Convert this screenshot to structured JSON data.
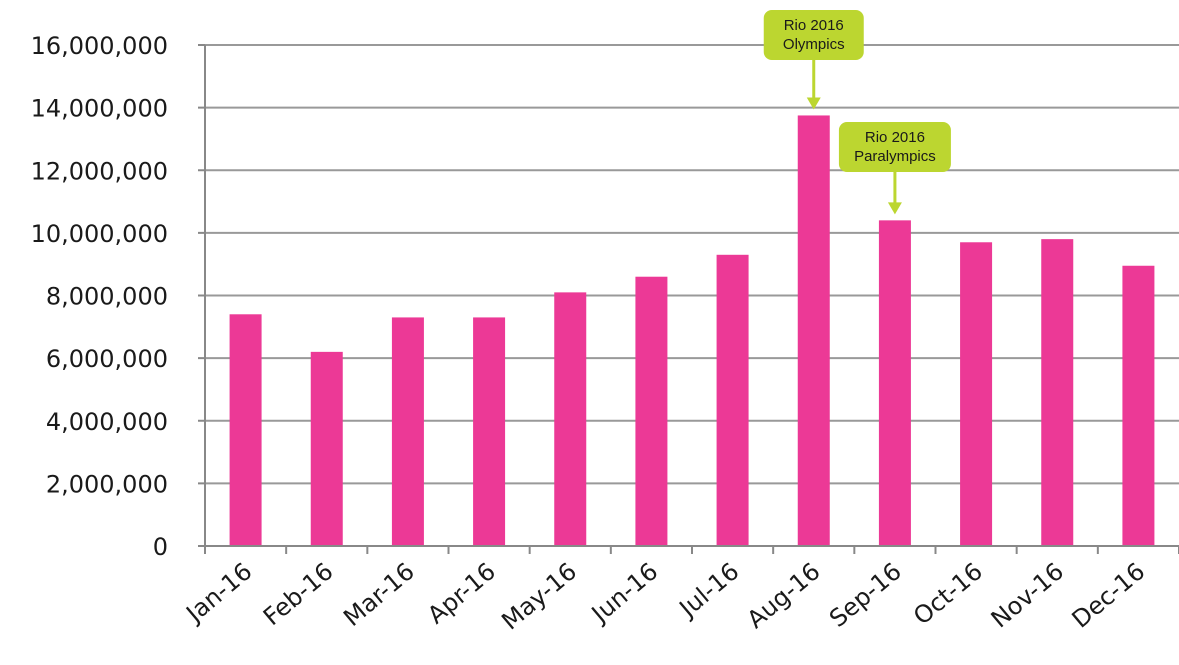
{
  "chart_data": {
    "type": "bar",
    "title": "",
    "xlabel": "",
    "ylabel": "",
    "categories": [
      "Jan-16",
      "Feb-16",
      "Mar-16",
      "Apr-16",
      "May-16",
      "Jun-16",
      "Jul-16",
      "Aug-16",
      "Sep-16",
      "Oct-16",
      "Nov-16",
      "Dec-16"
    ],
    "values": [
      7400000,
      6200000,
      7300000,
      7300000,
      8100000,
      8600000,
      9300000,
      13750000,
      10400000,
      9700000,
      9800000,
      8950000
    ],
    "ylim": [
      0,
      16000000
    ],
    "yticks": [
      0,
      2000000,
      4000000,
      6000000,
      8000000,
      10000000,
      12000000,
      14000000,
      16000000
    ],
    "ytick_labels": [
      "0",
      "2,000,000",
      "4,000,000",
      "6,000,000",
      "8,000,000",
      "10,000,000",
      "12,000,000",
      "14,000,000",
      "16,000,000"
    ],
    "grid": true,
    "bar_color": "#ec3996",
    "grid_color": "#999999",
    "annotations": [
      {
        "category": "Aug-16",
        "lines": [
          "Rio 2016",
          "Olympics"
        ]
      },
      {
        "category": "Sep-16",
        "lines": [
          "Rio 2016",
          "Paralympics"
        ]
      }
    ],
    "annotation_color": "#bcd630"
  }
}
